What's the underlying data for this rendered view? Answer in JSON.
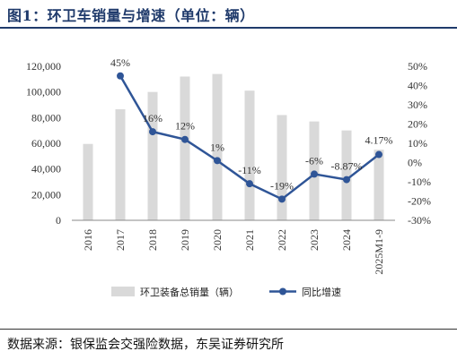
{
  "header": {
    "title": "图1：环卫车销量与增速（单位：辆）"
  },
  "footer": {
    "source": "数据来源：银保监会交强险数据，东吴证券研究所"
  },
  "chart_data": {
    "type": "bar",
    "categories": [
      "2016",
      "2017",
      "2018",
      "2019",
      "2020",
      "2021",
      "2022",
      "2023",
      "2024",
      "2025M1-9"
    ],
    "series": [
      {
        "name": "环卫装备总销量（辆）",
        "type": "bar",
        "axis": "left",
        "color": "#d9d9d9",
        "values": [
          59500,
          86500,
          100000,
          112000,
          114000,
          101000,
          82000,
          77000,
          70000,
          55000
        ]
      },
      {
        "name": "同比增速",
        "type": "line",
        "axis": "right",
        "color": "#2f5597",
        "values": [
          null,
          45,
          16,
          12,
          1,
          -11,
          -19,
          -6,
          -8.87,
          4.17
        ],
        "labels": [
          "",
          "45%",
          "16%",
          "12%",
          "1%",
          "-11%",
          "-19%",
          "-6%",
          "-8.87%",
          "4.17%"
        ]
      }
    ],
    "y_left": {
      "min": 0,
      "max": 120000,
      "step": 20000,
      "ticks": [
        "0",
        "20,000",
        "40,000",
        "60,000",
        "80,000",
        "100,000",
        "120,000"
      ]
    },
    "y_right": {
      "min": -30,
      "max": 50,
      "step": 10,
      "ticks": [
        "-30%",
        "-20%",
        "-10%",
        "0%",
        "10%",
        "20%",
        "30%",
        "40%",
        "50%"
      ]
    },
    "legend_position": "bottom",
    "grid": false
  }
}
